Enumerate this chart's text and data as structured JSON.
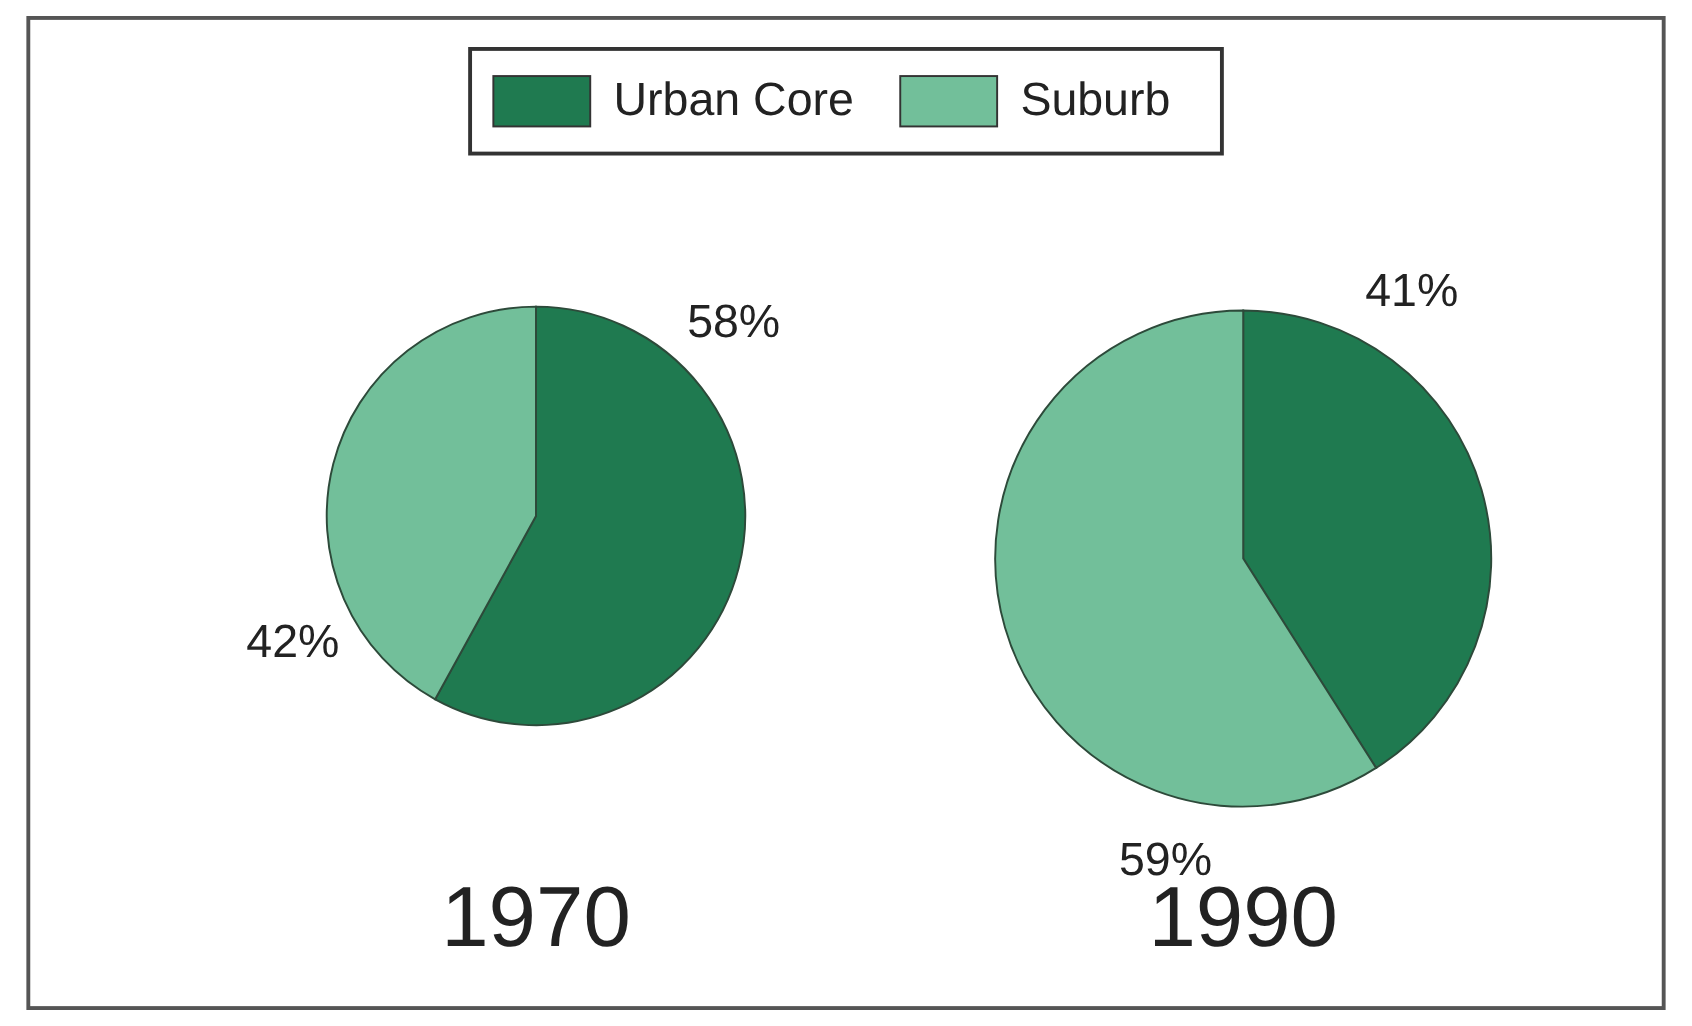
{
  "chart_data": {
    "type": "pie",
    "categories": [
      "Urban Core",
      "Suburb"
    ],
    "colors": [
      "#1f7a50",
      "#72bf9a"
    ],
    "legend": "top",
    "series": [
      {
        "name": "1970",
        "values": [
          58,
          42
        ],
        "value_labels": [
          "58%",
          "42%"
        ]
      },
      {
        "name": "1990",
        "values": [
          41,
          59
        ],
        "value_labels": [
          "41%",
          "59%"
        ]
      }
    ]
  }
}
